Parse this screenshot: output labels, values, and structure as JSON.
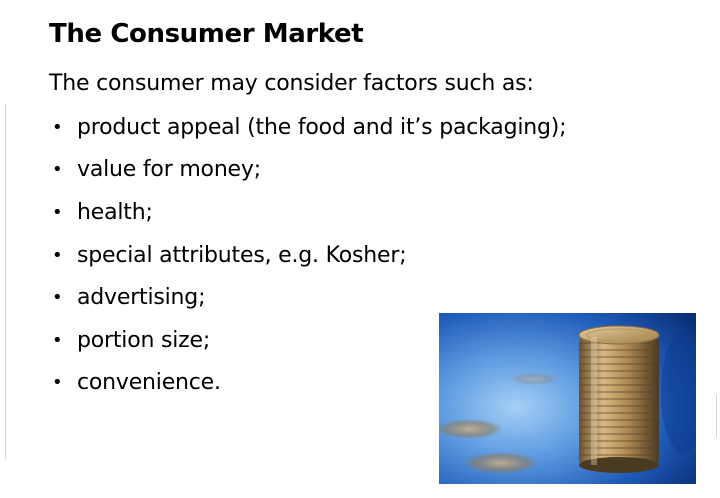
{
  "slide": {
    "title": "The Consumer Market",
    "intro": "The consumer may consider factors such as:",
    "bullet_marker": "•",
    "bullets": [
      "product appeal (the food and it’s packaging);",
      "value for money;",
      "health;",
      "special attributes, e.g. Kosher;",
      "advertising;",
      "portion size;",
      "convenience."
    ]
  },
  "image": {
    "subject": "stack-of-coins-photo",
    "colors": {
      "background_deep": "#0a3a8a",
      "background_light": "#9cc8f2",
      "coin_gold": "#c9a46a",
      "coin_shadow": "#6b5230"
    }
  }
}
